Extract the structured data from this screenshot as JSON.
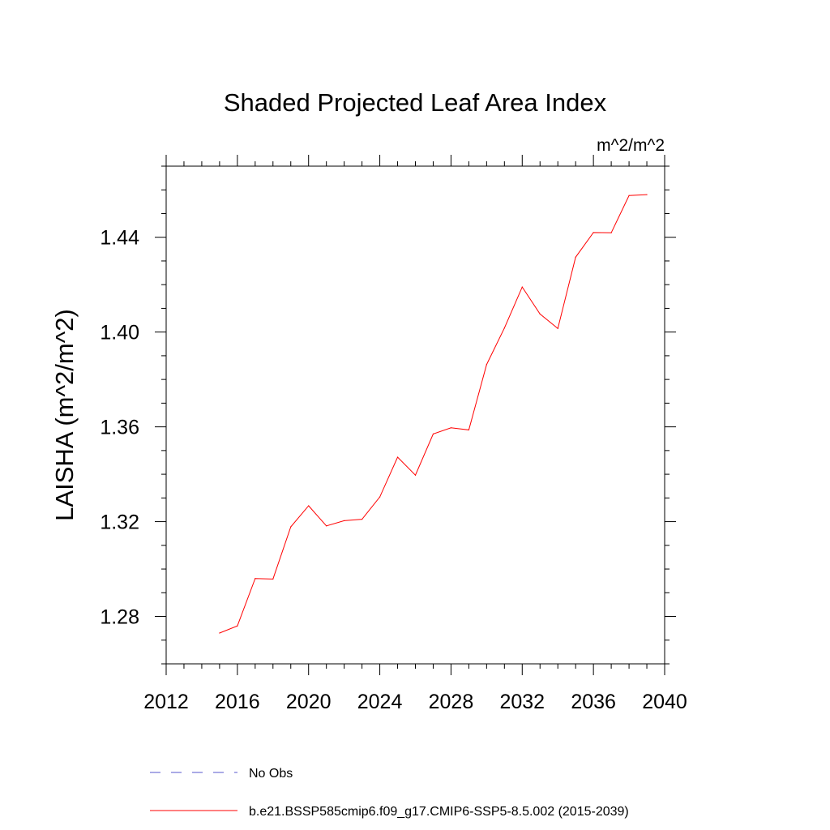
{
  "chart_data": {
    "type": "line",
    "title": "Shaded Projected Leaf Area Index",
    "units_label": "m^2/m^2",
    "xlabel": "",
    "ylabel": "LAISHA  (m^2/m^2)",
    "xlim": [
      2012,
      2040
    ],
    "ylim": [
      1.26,
      1.47
    ],
    "x_ticks": [
      2012,
      2016,
      2020,
      2024,
      2028,
      2032,
      2036,
      2040
    ],
    "x_tick_labels": [
      "2012",
      "2016",
      "2020",
      "2024",
      "2028",
      "2032",
      "2036",
      "2040"
    ],
    "y_ticks": [
      1.28,
      1.32,
      1.36,
      1.4,
      1.44
    ],
    "y_tick_labels": [
      "1.28",
      "1.32",
      "1.36",
      "1.40",
      "1.44"
    ],
    "grid": false,
    "legend_position": "bottom",
    "series": [
      {
        "name": "No Obs",
        "color": "#5555cc",
        "style": "dashed",
        "x": [],
        "y": []
      },
      {
        "name": "b.e21.BSSP585cmip6.f09_g17.CMIP6-SSP5-8.5.002 (2015-2039)",
        "color": "#ff0000",
        "style": "solid",
        "x": [
          2015,
          2016,
          2017,
          2018,
          2019,
          2020,
          2021,
          2022,
          2023,
          2024,
          2025,
          2026,
          2027,
          2028,
          2029,
          2030,
          2031,
          2032,
          2033,
          2034,
          2035,
          2036,
          2037,
          2038,
          2039
        ],
        "y": [
          1.273,
          1.276,
          1.296,
          1.2958,
          1.3178,
          1.3267,
          1.3182,
          1.3204,
          1.321,
          1.3304,
          1.3472,
          1.3396,
          1.357,
          1.3596,
          1.3587,
          1.3863,
          1.4017,
          1.419,
          1.4076,
          1.4015,
          1.4316,
          1.442,
          1.4419,
          1.4576,
          1.458
        ]
      }
    ]
  }
}
